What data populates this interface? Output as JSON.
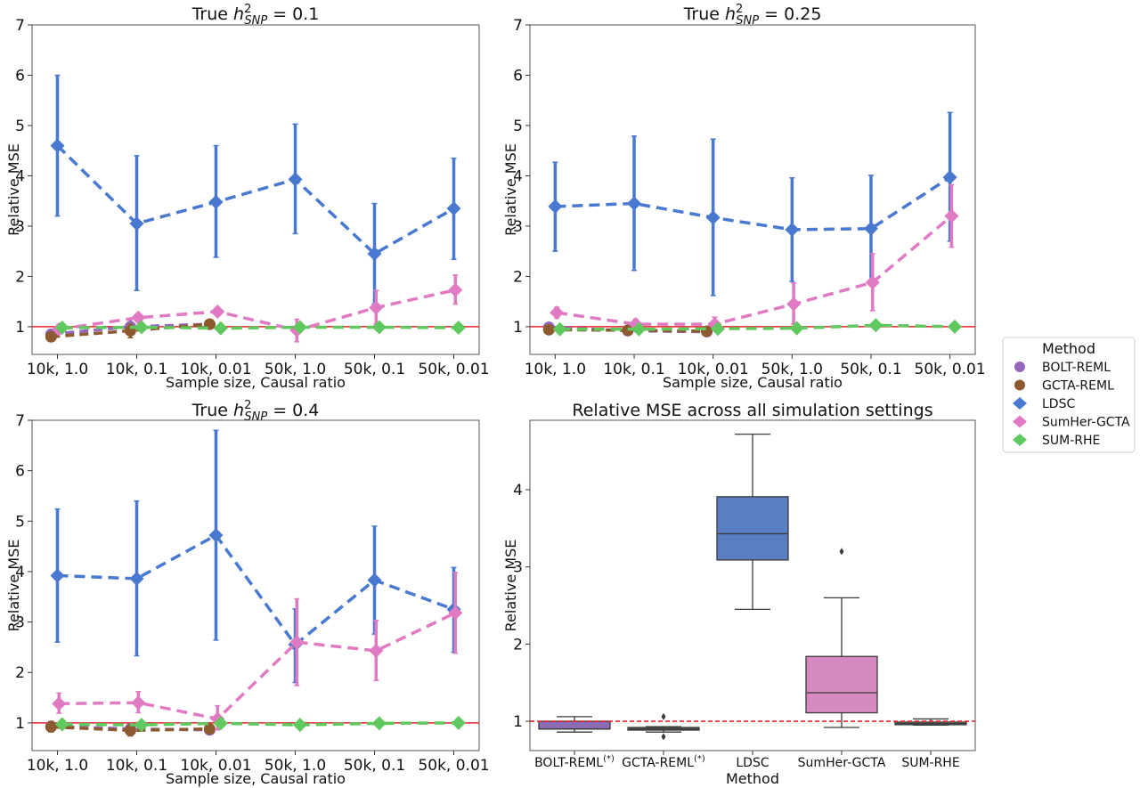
{
  "chart_data": [
    {
      "type": "line",
      "panel": "top-left",
      "title_prefix": "True ",
      "title_h": "h",
      "title_sup": "2",
      "title_sub": "SNP",
      "title_suffix": " = 0.1",
      "xlabel": "Sample size, Causal ratio",
      "ylabel": "Relative MSE",
      "ylim": [
        0.45,
        7
      ],
      "yticks": [
        1,
        2,
        3,
        4,
        5,
        6,
        7
      ],
      "reference_line": 1,
      "categories": [
        "10k, 1.0",
        "10k, 0.1",
        "10k, 0.01",
        "50k, 1.0",
        "50k, 0.1",
        "50k, 0.01"
      ],
      "series": [
        {
          "name": "BOLT-REML",
          "values": [
            0.85,
            1.0,
            1.05,
            null,
            null,
            null
          ],
          "err_low": [
            0.8,
            0.85,
            1.0,
            null,
            null,
            null
          ],
          "err_high": [
            0.9,
            1.15,
            1.1,
            null,
            null,
            null
          ]
        },
        {
          "name": "GCTA-REML",
          "values": [
            0.8,
            0.92,
            1.05,
            null,
            null,
            null
          ],
          "err_low": [
            0.76,
            0.78,
            1.0,
            null,
            null,
            null
          ],
          "err_high": [
            0.84,
            1.05,
            1.1,
            null,
            null,
            null
          ]
        },
        {
          "name": "LDSC",
          "values": [
            4.6,
            3.05,
            3.48,
            3.93,
            2.45,
            3.35
          ],
          "err_low": [
            3.2,
            1.72,
            2.38,
            2.85,
            1.45,
            2.34
          ],
          "err_high": [
            6.0,
            4.4,
            4.6,
            5.03,
            3.45,
            4.35
          ]
        },
        {
          "name": "SumHer-GCTA",
          "values": [
            0.95,
            1.18,
            1.3,
            0.93,
            1.38,
            1.73
          ],
          "err_low": [
            0.9,
            1.1,
            1.22,
            0.7,
            1.05,
            1.45
          ],
          "err_high": [
            1.0,
            1.26,
            1.38,
            1.15,
            1.72,
            2.03
          ]
        },
        {
          "name": "SUM-RHE",
          "values": [
            0.98,
            0.99,
            0.97,
            0.99,
            0.99,
            0.98
          ],
          "err_low": [
            0.96,
            0.97,
            0.95,
            0.97,
            0.97,
            0.96
          ],
          "err_high": [
            1.0,
            1.01,
            0.99,
            1.01,
            1.01,
            1.0
          ]
        }
      ]
    },
    {
      "type": "line",
      "panel": "top-right",
      "title_prefix": "True ",
      "title_h": "h",
      "title_sup": "2",
      "title_sub": "SNP",
      "title_suffix": " = 0.25",
      "xlabel": "Sample size, Causal ratio",
      "ylabel": "Relative MSE",
      "ylim": [
        0.45,
        7
      ],
      "yticks": [
        1,
        2,
        3,
        4,
        5,
        6,
        7
      ],
      "reference_line": 1,
      "categories": [
        "10k, 1.0",
        "10k, 0.1",
        "10k, 0.01",
        "50k, 1.0",
        "50k, 0.1",
        "50k, 0.01"
      ],
      "series": [
        {
          "name": "BOLT-REML",
          "values": [
            0.99,
            0.92,
            0.9,
            null,
            null,
            null
          ],
          "err_low": [
            0.96,
            0.9,
            0.88,
            null,
            null,
            null
          ],
          "err_high": [
            1.02,
            0.95,
            0.93,
            null,
            null,
            null
          ]
        },
        {
          "name": "GCTA-REML",
          "values": [
            0.94,
            0.93,
            0.91,
            null,
            null,
            null
          ],
          "err_low": [
            0.92,
            0.9,
            0.89,
            null,
            null,
            null
          ],
          "err_high": [
            0.97,
            0.96,
            0.93,
            null,
            null,
            null
          ]
        },
        {
          "name": "LDSC",
          "values": [
            3.39,
            3.45,
            3.17,
            2.93,
            2.95,
            3.97
          ],
          "err_low": [
            2.5,
            2.12,
            1.62,
            1.9,
            1.9,
            2.7
          ],
          "err_high": [
            4.27,
            4.79,
            4.73,
            3.96,
            4.01,
            5.26
          ]
        },
        {
          "name": "SumHer-GCTA",
          "values": [
            1.28,
            1.05,
            1.05,
            1.45,
            1.88,
            3.2
          ],
          "err_low": [
            1.17,
            0.97,
            0.97,
            1.05,
            1.32,
            2.58
          ],
          "err_high": [
            1.39,
            1.15,
            1.19,
            1.87,
            2.45,
            3.82
          ]
        },
        {
          "name": "SUM-RHE",
          "values": [
            0.95,
            0.95,
            0.96,
            0.97,
            1.03,
            1.0
          ],
          "err_low": [
            0.93,
            0.93,
            0.94,
            0.95,
            1.01,
            0.98
          ],
          "err_high": [
            0.97,
            0.97,
            0.98,
            0.99,
            1.05,
            1.02
          ]
        }
      ]
    },
    {
      "type": "line",
      "panel": "bottom-left",
      "title_prefix": "True ",
      "title_h": "h",
      "title_sup": "2",
      "title_sub": "SNP",
      "title_suffix": " = 0.4",
      "xlabel": "Sample size, Causal ratio",
      "ylabel": "Relative MSE",
      "ylim": [
        0.45,
        7
      ],
      "yticks": [
        1,
        2,
        3,
        4,
        5,
        6,
        7
      ],
      "reference_line": 1,
      "categories": [
        "10k, 1.0",
        "10k, 0.1",
        "10k, 0.01",
        "50k, 1.0",
        "50k, 0.1",
        "50k, 0.01"
      ],
      "series": [
        {
          "name": "BOLT-REML",
          "values": [
            0.93,
            0.88,
            0.86,
            null,
            null,
            null
          ],
          "err_low": [
            0.85,
            0.8,
            0.8,
            null,
            null,
            null
          ],
          "err_high": [
            1.02,
            0.98,
            0.93,
            null,
            null,
            null
          ]
        },
        {
          "name": "GCTA-REML",
          "values": [
            0.92,
            0.85,
            0.88,
            null,
            null,
            null
          ],
          "err_low": [
            0.82,
            0.74,
            0.8,
            null,
            null,
            null
          ],
          "err_high": [
            1.03,
            0.97,
            0.95,
            null,
            null,
            null
          ]
        },
        {
          "name": "LDSC",
          "values": [
            3.92,
            3.86,
            4.72,
            2.55,
            3.83,
            3.25
          ],
          "err_low": [
            2.6,
            2.33,
            2.64,
            1.8,
            2.76,
            2.4
          ],
          "err_high": [
            5.24,
            5.4,
            6.8,
            3.26,
            4.9,
            4.08
          ]
        },
        {
          "name": "SumHer-GCTA",
          "values": [
            1.38,
            1.4,
            1.08,
            2.6,
            2.43,
            3.18
          ],
          "err_low": [
            1.19,
            1.2,
            0.86,
            1.74,
            1.84,
            2.38
          ],
          "err_high": [
            1.59,
            1.62,
            1.34,
            3.46,
            3.03,
            3.98
          ]
        },
        {
          "name": "SUM-RHE",
          "values": [
            0.97,
            0.96,
            0.99,
            0.96,
            0.99,
            1.0
          ],
          "err_low": [
            0.95,
            0.94,
            0.97,
            0.94,
            0.97,
            0.98
          ],
          "err_high": [
            0.99,
            0.98,
            1.01,
            0.98,
            1.01,
            1.02
          ]
        }
      ]
    },
    {
      "type": "box",
      "panel": "bottom-right",
      "title": "Relative MSE across all simulation settings",
      "xlabel": "Method",
      "ylabel": "Relative MSE",
      "ylim": [
        0.62,
        4.9
      ],
      "yticks": [
        1,
        2,
        3,
        4
      ],
      "reference_line": 1,
      "categories": [
        "BOLT-REML",
        "GCTA-REML",
        "LDSC",
        "SumHer-GCTA",
        "SUM-RHE"
      ],
      "category_sup": [
        "(*)",
        "(*)",
        "",
        "",
        ""
      ],
      "boxes": [
        {
          "name": "BOLT-REML",
          "whisker_low": 0.86,
          "q1": 0.9,
          "median": 0.9,
          "q3": 1.0,
          "whisker_high": 1.06,
          "outliers": []
        },
        {
          "name": "GCTA-REML",
          "whisker_low": 0.86,
          "q1": 0.89,
          "median": 0.9,
          "q3": 0.92,
          "whisker_high": 0.93,
          "outliers": [
            1.06,
            0.8
          ]
        },
        {
          "name": "LDSC",
          "whisker_low": 2.45,
          "q1": 3.09,
          "median": 3.43,
          "q3": 3.91,
          "whisker_high": 4.72,
          "outliers": []
        },
        {
          "name": "SumHer-GCTA",
          "whisker_low": 0.92,
          "q1": 1.11,
          "median": 1.37,
          "q3": 1.84,
          "whisker_high": 2.6,
          "outliers": [
            3.2
          ]
        },
        {
          "name": "SUM-RHE",
          "whisker_low": 0.95,
          "q1": 0.96,
          "median": 0.97,
          "q3": 0.99,
          "whisker_high": 1.03,
          "outliers": []
        }
      ]
    }
  ],
  "legend": {
    "title": "Method",
    "placement": "right",
    "items": [
      {
        "label": "BOLT-REML",
        "color": "#9467bd",
        "marker": "circle"
      },
      {
        "label": "GCTA-REML",
        "color": "#8c5a2e",
        "marker": "circle"
      },
      {
        "label": "LDSC",
        "color": "#4878d0",
        "marker": "diamond"
      },
      {
        "label": "SumHer-GCTA",
        "color": "#e07ac2",
        "marker": "diamond"
      },
      {
        "label": "SUM-RHE",
        "color": "#5fc95f",
        "marker": "diamond"
      }
    ]
  },
  "colors": {
    "BOLT-REML": "#9467bd",
    "GCTA-REML": "#8c5a2e",
    "LDSC": "#4878d0",
    "SumHer-GCTA": "#e07ac2",
    "SUM-RHE": "#5fc95f",
    "box_BOLT-REML": "#8d6bb5",
    "box_GCTA-REML": "#7f6654",
    "box_LDSC": "#5a7ec4",
    "box_SumHer-GCTA": "#d68ac0",
    "box_SUM-RHE": "#6a8f6a",
    "reference": "#e8232b"
  }
}
